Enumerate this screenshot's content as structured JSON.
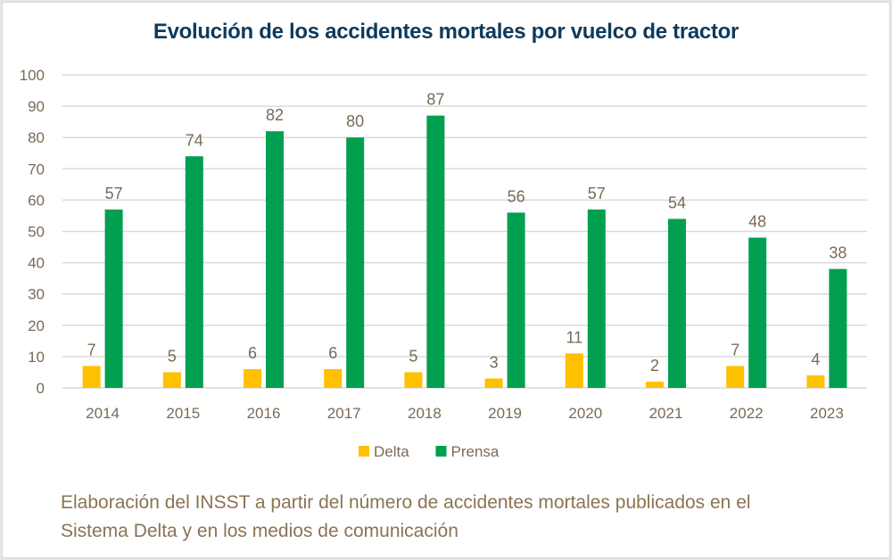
{
  "chart_data": {
    "type": "bar",
    "title": "Evolución de los accidentes mortales por vuelco de tractor",
    "categories": [
      "2014",
      "2015",
      "2016",
      "2017",
      "2018",
      "2019",
      "2020",
      "2021",
      "2022",
      "2023"
    ],
    "series": [
      {
        "name": "Delta",
        "color": "#ffc000",
        "values": [
          7,
          5,
          6,
          6,
          5,
          3,
          11,
          2,
          7,
          4
        ]
      },
      {
        "name": "Prensa",
        "color": "#00a050",
        "values": [
          57,
          74,
          82,
          80,
          87,
          56,
          57,
          54,
          48,
          38
        ]
      }
    ],
    "yticks": [
      0,
      10,
      20,
      30,
      40,
      50,
      60,
      70,
      80,
      90,
      100
    ],
    "ylim": [
      0,
      100
    ],
    "xlabel": "",
    "ylabel": "",
    "grid": true,
    "legend_position": "bottom"
  },
  "caption": {
    "line1": "Elaboración del INSST a partir del número de accidentes mortales publicados en el",
    "line2": "Sistema Delta y en los medios de comunicación"
  }
}
